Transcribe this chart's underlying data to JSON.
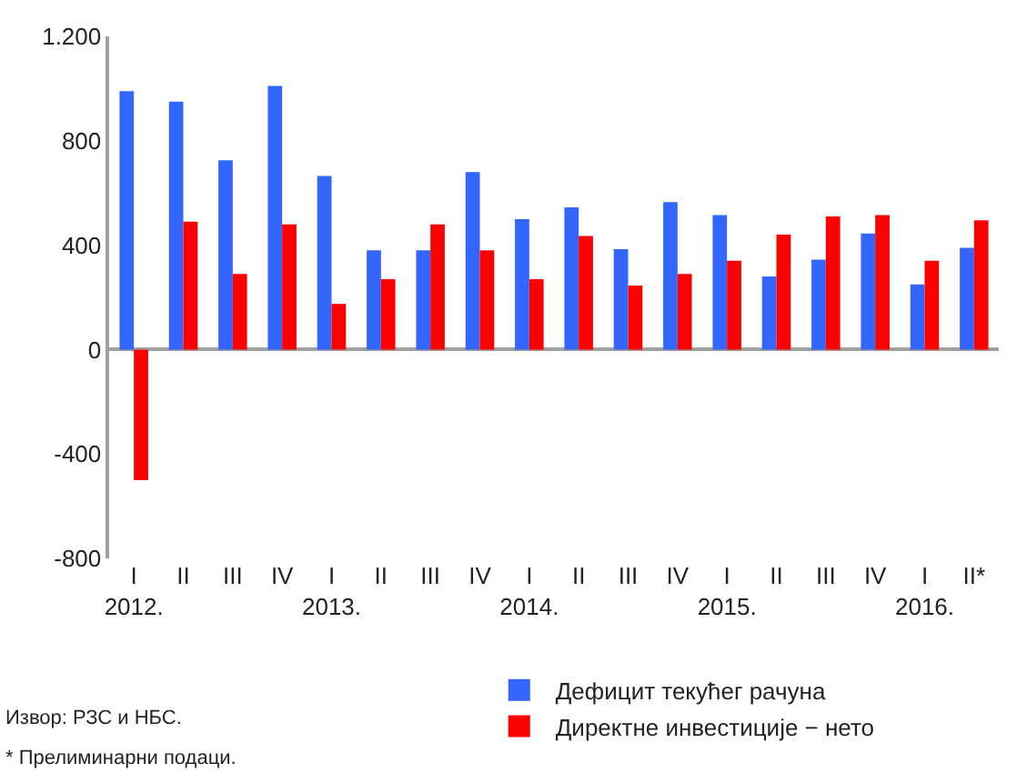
{
  "chart_data": {
    "type": "bar",
    "categories": [
      "I\n2012.",
      "II",
      "III",
      "IV",
      "I\n2013.",
      "II",
      "III",
      "IV",
      "I\n2014.",
      "II",
      "III",
      "IV",
      "I\n2015.",
      "II",
      "III",
      "IV",
      "I\n2016.",
      "II*"
    ],
    "series": [
      {
        "name": "Дефицит текућег рачуна",
        "color": "#3366ff",
        "values": [
          990,
          950,
          725,
          1010,
          665,
          380,
          380,
          680,
          500,
          545,
          385,
          565,
          515,
          280,
          345,
          445,
          250,
          390
        ]
      },
      {
        "name": "Директне инвестиције − нето",
        "color": "#ff0000",
        "values": [
          -500,
          490,
          290,
          480,
          175,
          270,
          480,
          380,
          270,
          435,
          245,
          290,
          340,
          440,
          510,
          515,
          340,
          495
        ]
      }
    ],
    "ylim": [
      -800,
      1200
    ],
    "yticks": [
      {
        "value": -800,
        "label": "-800"
      },
      {
        "value": -400,
        "label": "-400"
      },
      0,
      400,
      800,
      {
        "value": 1200,
        "label": "1.200"
      }
    ],
    "legend": "bottom",
    "annotations": [
      "Извор: РЗС и НБС.",
      "* Прелиминарни подаци."
    ]
  }
}
